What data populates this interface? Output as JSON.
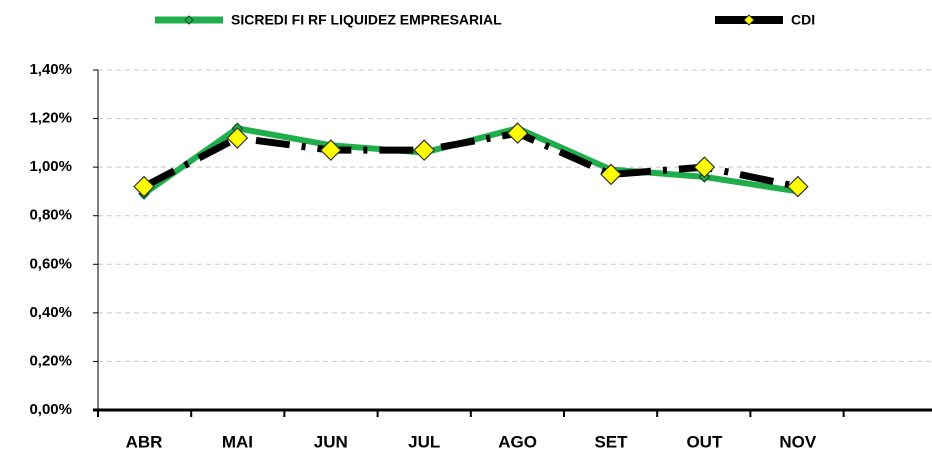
{
  "chart_data": {
    "type": "line",
    "categories": [
      "ABR",
      "MAI",
      "JUN",
      "JUL",
      "AGO",
      "SET",
      "OUT",
      "NOV",
      null
    ],
    "series": [
      {
        "name": "SICREDI FI RF LIQUIDEZ EMPRESARIAL",
        "color": "#1fae4b",
        "values": [
          0.89,
          1.16,
          1.09,
          1.06,
          1.16,
          0.99,
          0.96,
          0.9,
          null
        ]
      },
      {
        "name": "CDI",
        "color": "#000000",
        "values": [
          0.92,
          1.12,
          1.07,
          1.07,
          1.14,
          0.97,
          1.0,
          0.92,
          null
        ]
      }
    ],
    "ylim": [
      0,
      1.4
    ],
    "yticks": [
      {
        "value": 0,
        "label": "0,00%"
      },
      {
        "value": 0.2,
        "label": "0,20%"
      },
      {
        "value": 0.4,
        "label": "0,40%"
      },
      {
        "value": 0.6,
        "label": "0,60%"
      },
      {
        "value": 0.8,
        "label": "0,80%"
      },
      {
        "value": 1.0,
        "label": "1,00%"
      },
      {
        "value": 1.2,
        "label": "1,20%"
      },
      {
        "value": 1.4,
        "label": "1,40%"
      }
    ],
    "grid": true,
    "legend": "top"
  }
}
